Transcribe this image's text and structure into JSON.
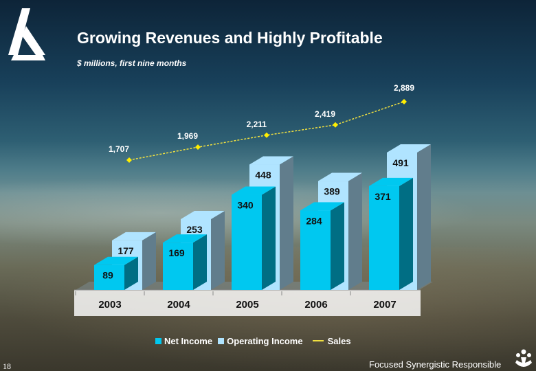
{
  "slide": {
    "title": "Growing Revenues and Highly Profitable",
    "subtitle": "$ millions, first nine months",
    "page_number": "18",
    "tagline": "Focused Synergistic Responsible",
    "logo_icon": "company-logo-icon",
    "corner_icon": "people-group-icon"
  },
  "legend": {
    "net_income": "Net Income",
    "operating_income": "Operating Income",
    "sales": "Sales"
  },
  "colors": {
    "net_income": "#00c8f0",
    "operating_income": "#b0e4ff",
    "sales_line": "#f0e040",
    "sales_marker": "#ffee00"
  },
  "chart_data": {
    "type": "bar",
    "categories": [
      "2003",
      "2004",
      "2005",
      "2006",
      "2007"
    ],
    "series": [
      {
        "name": "Net Income",
        "values": [
          89,
          169,
          340,
          284,
          371
        ]
      },
      {
        "name": "Operating Income",
        "values": [
          177,
          253,
          448,
          389,
          491
        ]
      },
      {
        "name": "Sales",
        "type": "line",
        "values": [
          1707,
          1969,
          2211,
          2419,
          2889
        ]
      }
    ],
    "value_labels": {
      "net_income": [
        "89",
        "169",
        "340",
        "284",
        "371"
      ],
      "operating_income": [
        "177",
        "253",
        "448",
        "389",
        "491"
      ],
      "sales": [
        "1,707",
        "1,969",
        "2,211",
        "2,419",
        "2,889"
      ]
    },
    "title": "Growing Revenues and Highly Profitable",
    "subtitle": "$ millions, first nine months",
    "xlabel": "",
    "ylabel": "",
    "grid": false,
    "legend_position": "bottom",
    "style": "3d-bars"
  }
}
